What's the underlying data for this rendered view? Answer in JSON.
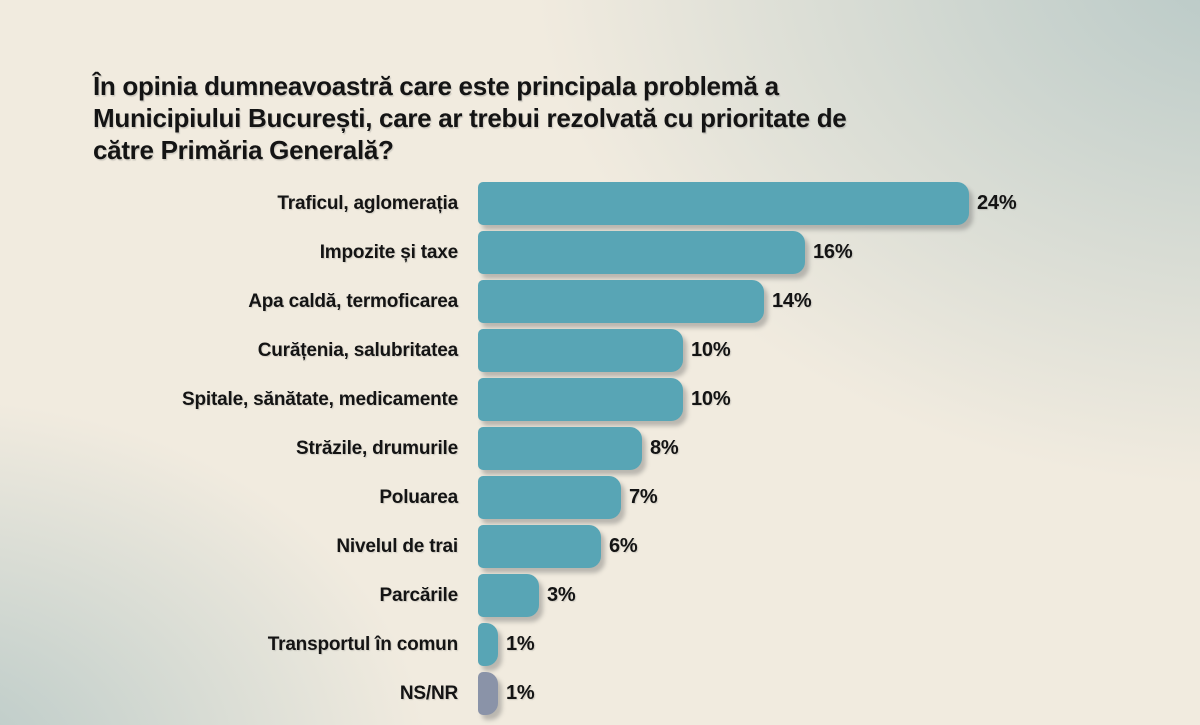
{
  "page": {
    "title_lines": [
      "În opinia dumneavoastră care este principala problemă a",
      "Municipiului București, care ar trebui rezolvată cu prioritate de",
      "către Primăria Generală?"
    ]
  },
  "colors": {
    "bar_teal": "#58a5b5",
    "bar_nsnr_gray": "#8a93a8",
    "text": "#141414",
    "background_cream": "#f1ebdf",
    "background_bluegray": "#b7c8c6"
  },
  "chart_data": {
    "type": "bar",
    "orientation": "horizontal",
    "title": "În opinia dumneavoastră care este principala problemă a Municipiului București, care ar trebui rezolvată cu prioritate de către Primăria Generală?",
    "categories": [
      "Traficul, aglomerația",
      "Impozite și taxe",
      "Apa caldă, termoficarea",
      "Curățenia, salubritatea",
      "Spitale, sănătate, medicamente",
      "Străzile, drumurile",
      "Poluarea",
      "Nivelul de trai",
      "Parcările",
      "Transportul în comun",
      "NS/NR"
    ],
    "values": [
      24,
      16,
      14,
      10,
      10,
      8,
      7,
      6,
      3,
      1,
      1
    ],
    "value_labels": [
      "24%",
      "16%",
      "14%",
      "10%",
      "10%",
      "8%",
      "7%",
      "6%",
      "3%",
      "1%",
      "1%"
    ],
    "bar_colors": [
      "#58a5b5",
      "#58a5b5",
      "#58a5b5",
      "#58a5b5",
      "#58a5b5",
      "#58a5b5",
      "#58a5b5",
      "#58a5b5",
      "#58a5b5",
      "#58a5b5",
      "#8a93a8"
    ],
    "unit": "%",
    "xlim": [
      0,
      24
    ],
    "grid": false,
    "legend": false
  }
}
